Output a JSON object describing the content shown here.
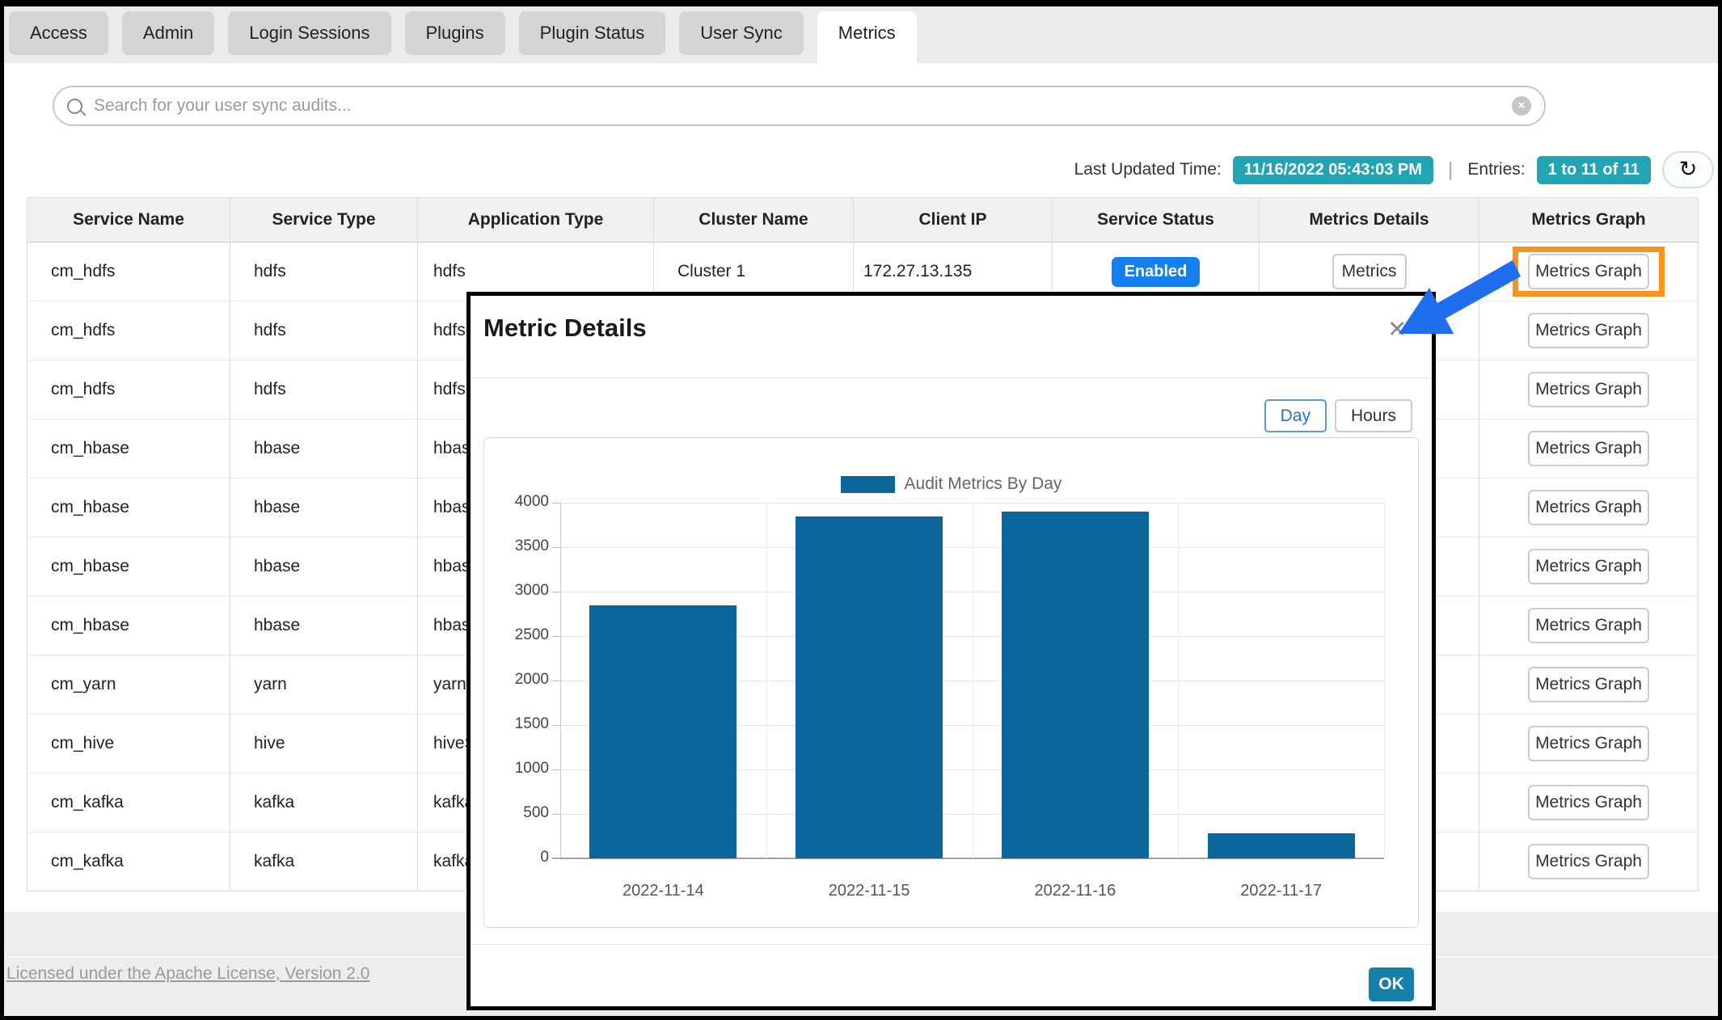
{
  "tabs": {
    "items": [
      {
        "label": "Access",
        "active": false
      },
      {
        "label": "Admin",
        "active": false
      },
      {
        "label": "Login Sessions",
        "active": false
      },
      {
        "label": "Plugins",
        "active": false
      },
      {
        "label": "Plugin Status",
        "active": false
      },
      {
        "label": "User Sync",
        "active": false
      },
      {
        "label": "Metrics",
        "active": true
      }
    ]
  },
  "search": {
    "placeholder": "Search for your user sync audits...",
    "clear_icon": "×"
  },
  "info_bar": {
    "last_updated_label": "Last Updated Time:",
    "last_updated_value": "11/16/2022 05:43:03 PM",
    "separator": "|",
    "entries_label": "Entries:",
    "entries_value": "1 to 11 of 11",
    "refresh_icon": "↻",
    "badge_color": "#22a4b4"
  },
  "table": {
    "columns": [
      "Service Name",
      "Service Type",
      "Application Type",
      "Cluster Name",
      "Client IP",
      "Service Status",
      "Metrics Details",
      "Metrics Graph"
    ],
    "rows": [
      {
        "service_name": "cm_hdfs",
        "service_type": "hdfs",
        "application_type": "hdfs",
        "cluster_name": "Cluster 1",
        "client_ip": "172.27.13.135",
        "service_status": "Enabled",
        "metrics_details": "Metrics",
        "metrics_graph": "Metrics Graph",
        "highlighted": true
      },
      {
        "service_name": "cm_hdfs",
        "service_type": "hdfs",
        "application_type": "hdfs",
        "cluster_name": "",
        "client_ip": "",
        "service_status": "",
        "metrics_details": "",
        "metrics_graph": "Metrics Graph",
        "highlighted": false
      },
      {
        "service_name": "cm_hdfs",
        "service_type": "hdfs",
        "application_type": "hdfs",
        "cluster_name": "",
        "client_ip": "",
        "service_status": "",
        "metrics_details": "",
        "metrics_graph": "Metrics Graph",
        "highlighted": false
      },
      {
        "service_name": "cm_hbase",
        "service_type": "hbase",
        "application_type": "hbase",
        "cluster_name": "",
        "client_ip": "",
        "service_status": "",
        "metrics_details": "",
        "metrics_graph": "Metrics Graph",
        "highlighted": false
      },
      {
        "service_name": "cm_hbase",
        "service_type": "hbase",
        "application_type": "hbase",
        "cluster_name": "",
        "client_ip": "",
        "service_status": "",
        "metrics_details": "",
        "metrics_graph": "Metrics Graph",
        "highlighted": false
      },
      {
        "service_name": "cm_hbase",
        "service_type": "hbase",
        "application_type": "hbase",
        "cluster_name": "",
        "client_ip": "",
        "service_status": "",
        "metrics_details": "",
        "metrics_graph": "Metrics Graph",
        "highlighted": false
      },
      {
        "service_name": "cm_hbase",
        "service_type": "hbase",
        "application_type": "hbase",
        "cluster_name": "",
        "client_ip": "",
        "service_status": "",
        "metrics_details": "",
        "metrics_graph": "Metrics Graph",
        "highlighted": false
      },
      {
        "service_name": "cm_yarn",
        "service_type": "yarn",
        "application_type": "yarn",
        "cluster_name": "",
        "client_ip": "",
        "service_status": "",
        "metrics_details": "",
        "metrics_graph": "Metrics Graph",
        "highlighted": false
      },
      {
        "service_name": "cm_hive",
        "service_type": "hive",
        "application_type": "hiveS",
        "cluster_name": "",
        "client_ip": "",
        "service_status": "",
        "metrics_details": "",
        "metrics_graph": "Metrics Graph",
        "highlighted": false
      },
      {
        "service_name": "cm_kafka",
        "service_type": "kafka",
        "application_type": "kafka",
        "cluster_name": "",
        "client_ip": "",
        "service_status": "",
        "metrics_details": "",
        "metrics_graph": "Metrics Graph",
        "highlighted": false
      },
      {
        "service_name": "cm_kafka",
        "service_type": "kafka",
        "application_type": "kafka",
        "cluster_name": "",
        "client_ip": "",
        "service_status": "",
        "metrics_details": "",
        "metrics_graph": "Metrics Graph",
        "highlighted": false
      }
    ]
  },
  "status_colors": {
    "enabled_bg": "#1480f0"
  },
  "annotations": {
    "highlight_color": "#f7941d",
    "arrow_color": "#1e6ef0"
  },
  "footer": {
    "license_link": "Licensed under the Apache License, Version 2.0"
  },
  "modal": {
    "title": "Metric Details",
    "close_icon": "✕",
    "range_buttons": [
      {
        "label": "Day",
        "active": true
      },
      {
        "label": "Hours",
        "active": false
      }
    ],
    "ok_label": "OK",
    "ok_color": "#1581a8"
  },
  "chart_data": {
    "type": "bar",
    "title": "",
    "legend": "Audit Metrics By Day",
    "categories": [
      "2022-11-14",
      "2022-11-15",
      "2022-11-16",
      "2022-11-17"
    ],
    "values": [
      2850,
      3850,
      3900,
      280
    ],
    "xlabel": "",
    "ylabel": "",
    "ylim": [
      0,
      4000
    ],
    "ytick_step": 500,
    "bar_color": "#0b669b",
    "grid": true,
    "legend_position": "top-center"
  }
}
